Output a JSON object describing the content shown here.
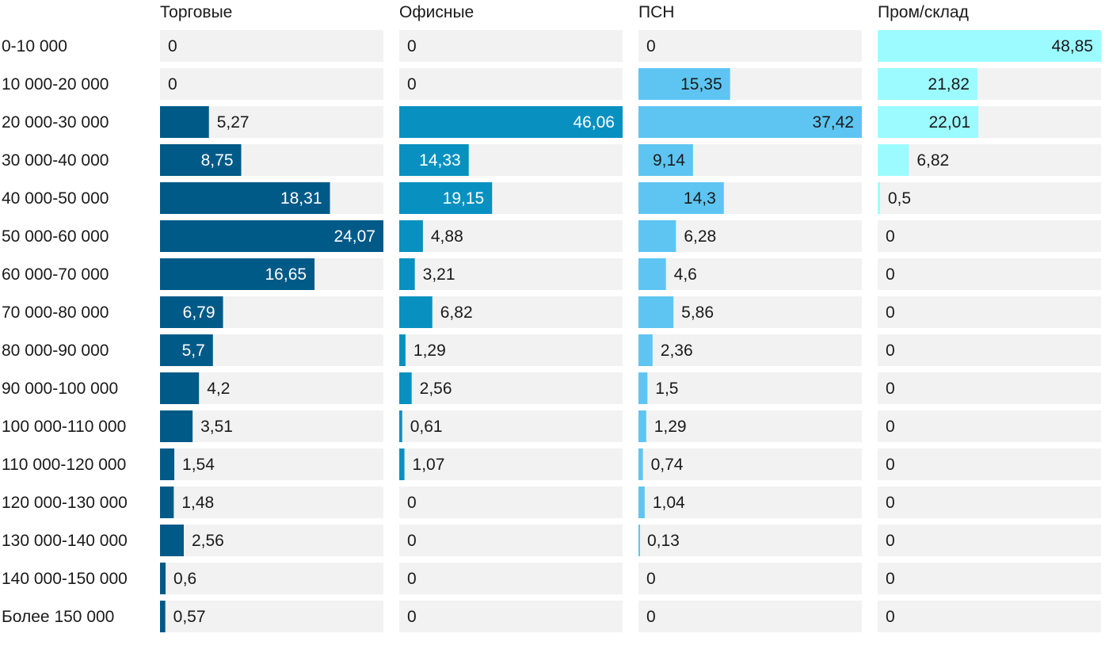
{
  "chart_data": {
    "type": "bar",
    "orientation": "horizontal",
    "layout": "small-multiples",
    "categories": [
      "0-10 000",
      "10 000-20 000",
      "20 000-30 000",
      "30 000-40 000",
      "40 000-50 000",
      "50 000-60 000",
      "60 000-70 000",
      "70 000-80 000",
      "80 000-90 000",
      "90 000-100 000",
      "100 000-110 000",
      "110 000-120 000",
      "120 000-130 000",
      "130 000-140 000",
      "140 000-150 000",
      "Более 150 000"
    ],
    "series": [
      {
        "name": "Торговые",
        "color": "#005a87",
        "labels": [
          "0",
          "0",
          "5,27",
          "8,75",
          "18,31",
          "24,07",
          "16,65",
          "6,79",
          "5,7",
          "4,2",
          "3,51",
          "1,54",
          "1,48",
          "2,56",
          "0,6",
          "0,57"
        ],
        "values": [
          0,
          0,
          5.27,
          8.75,
          18.31,
          24.07,
          16.65,
          6.79,
          5.7,
          4.2,
          3.51,
          1.54,
          1.48,
          2.56,
          0.6,
          0.57
        ],
        "max": 24.07
      },
      {
        "name": "Офисные",
        "color": "#0891c0",
        "labels": [
          "0",
          "0",
          "46,06",
          "14,33",
          "19,15",
          "4,88",
          "3,21",
          "6,82",
          "1,29",
          "2,56",
          "0,61",
          "1,07",
          "0",
          "0",
          "0",
          "0"
        ],
        "values": [
          0,
          0,
          46.06,
          14.33,
          19.15,
          4.88,
          3.21,
          6.82,
          1.29,
          2.56,
          0.61,
          1.07,
          0,
          0,
          0,
          0
        ],
        "max": 46.06
      },
      {
        "name": "ПСН",
        "color": "#5ec5f2",
        "labels": [
          "0",
          "15,35",
          "37,42",
          "9,14",
          "14,3",
          "6,28",
          "4,6",
          "5,86",
          "2,36",
          "1,5",
          "1,29",
          "0,74",
          "1,04",
          "0,13",
          "0",
          "0"
        ],
        "values": [
          0,
          15.35,
          37.42,
          9.14,
          14.3,
          6.28,
          4.6,
          5.86,
          2.36,
          1.5,
          1.29,
          0.74,
          1.04,
          0.13,
          0,
          0
        ],
        "max": 37.42
      },
      {
        "name": "Пром/склад",
        "color": "#9cfbff",
        "labels": [
          "48,85",
          "21,82",
          "22,01",
          "6,82",
          "0,5",
          "0",
          "0",
          "0",
          "0",
          "0",
          "0",
          "0",
          "0",
          "0",
          "0",
          "0"
        ],
        "values": [
          48.85,
          21.82,
          22.01,
          6.82,
          0.5,
          0,
          0,
          0,
          0,
          0,
          0,
          0,
          0,
          0,
          0,
          0
        ],
        "max": 48.85
      }
    ],
    "track_color": "#f2f2f2",
    "grid": false,
    "legend": "none"
  }
}
